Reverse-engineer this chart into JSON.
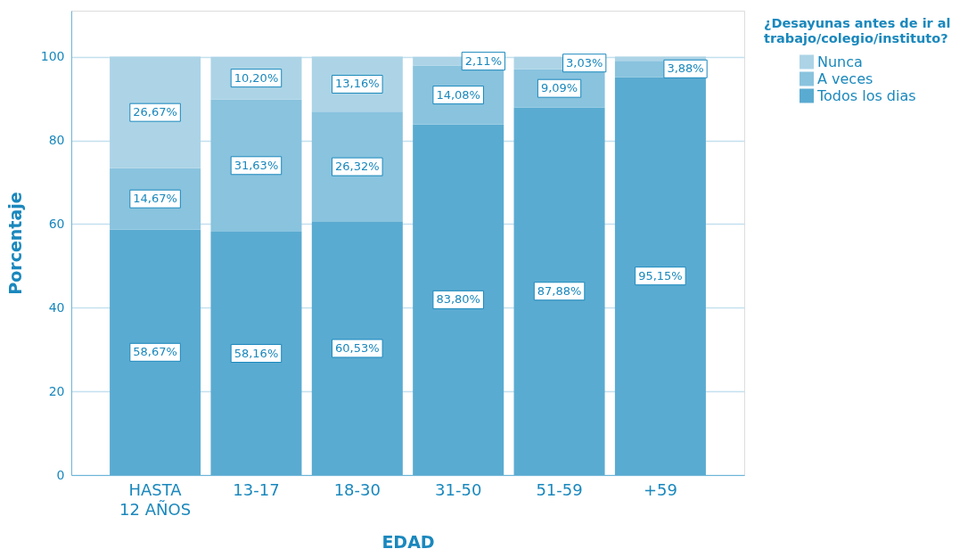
{
  "chart_data": {
    "type": "bar",
    "stacked": true,
    "categories": [
      "HASTA 12 AÑOS",
      "13-17",
      "18-30",
      "31-50",
      "51-59",
      "+59"
    ],
    "xlabel": "EDAD",
    "ylabel": "Porcentaje",
    "legend_title": "¿Desayunas antes de ir al trabajo/colegio/instituto?",
    "ylim": [
      0,
      111
    ],
    "yticks": [
      0,
      20,
      40,
      60,
      80,
      100
    ],
    "grid": "y",
    "legend": "top right",
    "series": [
      {
        "name": "Todos los dias",
        "color": "#5aabd1",
        "values": [
          58.67,
          58.16,
          60.53,
          83.8,
          87.88,
          95.15
        ],
        "value_labels": [
          "58,67%",
          "58,16%",
          "60,53%",
          "83,80%",
          "87,88%",
          "95,15%"
        ]
      },
      {
        "name": "A veces",
        "color": "#89c3de",
        "values": [
          14.67,
          31.63,
          26.32,
          14.08,
          9.09,
          3.88
        ],
        "value_labels": [
          "14,67%",
          "31,63%",
          "26,32%",
          "14,08%",
          "9,09%",
          "3,88%"
        ]
      },
      {
        "name": "Nunca",
        "color": "#acd4e6",
        "values": [
          26.67,
          10.2,
          13.16,
          2.11,
          3.03,
          1
        ],
        "value_labels": [
          "26,67%",
          "10,20%",
          "13,16%",
          "2,11%",
          "3,03%",
          null
        ]
      }
    ]
  }
}
